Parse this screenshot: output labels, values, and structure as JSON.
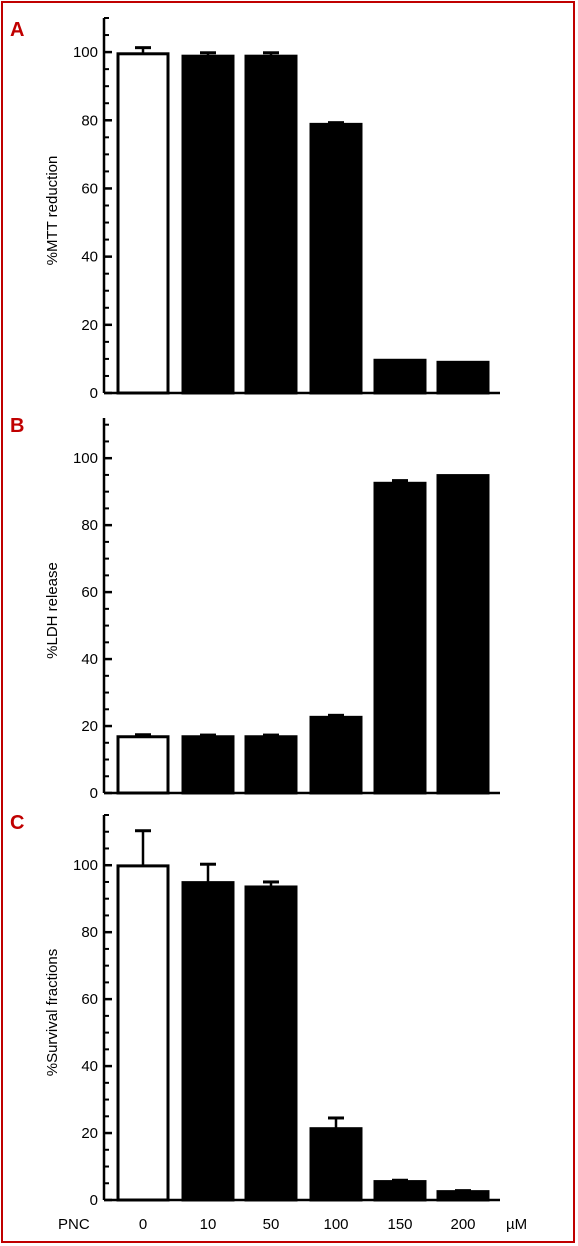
{
  "colors": {
    "frame": "#c00000",
    "panel_letter": "#c00000",
    "bar_control": "#ffffff",
    "bar_treated": "#000000",
    "axis": "#000000"
  },
  "x_axis": {
    "prefix": "PNC",
    "unit": "µM"
  },
  "chart_data": [
    {
      "type": "bar",
      "panel": "A",
      "ylabel": "%MTT reduction",
      "ylim": [
        0,
        110
      ],
      "yticks": [
        0,
        20,
        40,
        60,
        80,
        100
      ],
      "categories": [
        "0",
        "10",
        "50",
        "100",
        "150",
        "200"
      ],
      "values": [
        99.5,
        98.8,
        98.8,
        78.8,
        9.6,
        9.0
      ],
      "errors": [
        1.8,
        1.0,
        1.0,
        0.5,
        0,
        0
      ],
      "fill": [
        "open",
        "filled",
        "filled",
        "filled",
        "filled",
        "filled"
      ],
      "grid": false
    },
    {
      "type": "bar",
      "panel": "B",
      "ylabel": "%LDH release",
      "ylim": [
        0,
        112
      ],
      "yticks": [
        0,
        20,
        40,
        60,
        80,
        100
      ],
      "categories": [
        "0",
        "10",
        "50",
        "100",
        "150",
        "200"
      ],
      "values": [
        16.8,
        16.8,
        16.8,
        22.6,
        92.5,
        94.8
      ],
      "errors": [
        0.6,
        0.5,
        0.5,
        0.6,
        0.8,
        0
      ],
      "fill": [
        "open",
        "filled",
        "filled",
        "filled",
        "filled",
        "filled"
      ],
      "grid": false
    },
    {
      "type": "bar",
      "panel": "C",
      "ylabel": "%Survival fractions",
      "ylim": [
        0,
        115
      ],
      "yticks": [
        0,
        20,
        40,
        60,
        80,
        100
      ],
      "categories": [
        "0",
        "10",
        "50",
        "100",
        "150",
        "200"
      ],
      "values": [
        99.8,
        94.8,
        93.5,
        21.3,
        5.5,
        2.5
      ],
      "errors": [
        10.5,
        5.5,
        1.5,
        3.2,
        0.4,
        0.3
      ],
      "fill": [
        "open",
        "filled",
        "filled",
        "filled",
        "filled",
        "filled"
      ],
      "grid": false
    }
  ]
}
